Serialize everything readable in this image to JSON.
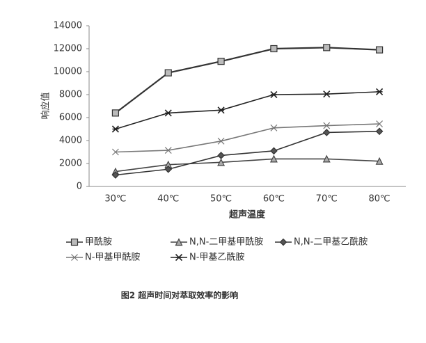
{
  "chart_data": {
    "type": "line",
    "xlabel": "超声温度",
    "ylabel": "响应值",
    "categories": [
      "30℃",
      "40℃",
      "50℃",
      "60℃",
      "70℃",
      "80℃"
    ],
    "ylim": [
      0,
      14000
    ],
    "yticks": [
      0,
      2000,
      4000,
      6000,
      8000,
      10000,
      12000,
      14000
    ],
    "grid": false,
    "legend": "bottom",
    "series": [
      {
        "name": "甲酰胺",
        "color": "#333333",
        "marker": "square",
        "values": [
          6400,
          9900,
          10900,
          12000,
          12100,
          11900
        ]
      },
      {
        "name": "N,N-二甲基甲酰胺",
        "color": "#444444",
        "marker": "triangle",
        "values": [
          1300,
          1900,
          2100,
          2400,
          2400,
          2200
        ]
      },
      {
        "name": "N,N-二甲基乙酰胺",
        "color": "#333333",
        "marker": "diamond",
        "values": [
          1000,
          1500,
          2700,
          3100,
          4700,
          4800
        ]
      },
      {
        "name": "N-甲基甲酰胺",
        "color": "#777777",
        "marker": "x",
        "values": [
          3000,
          3150,
          3950,
          5100,
          5300,
          5450
        ]
      },
      {
        "name": "N-甲基乙酰胺",
        "color": "#222222",
        "marker": "star",
        "values": [
          5000,
          6400,
          6650,
          8000,
          8050,
          8250
        ]
      }
    ]
  },
  "caption": "图2 超声时间对萃取效率的影响"
}
